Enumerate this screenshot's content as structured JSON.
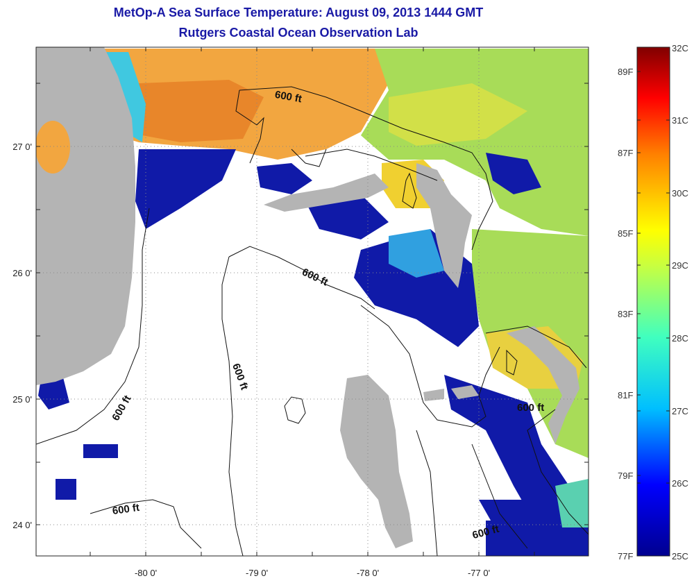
{
  "title_line1": "MetOp-A Sea Surface Temperature:  August 09, 2013 1444 GMT",
  "title_line2": "Rutgers Coastal Ocean Observation Lab",
  "axes": {
    "lon_labels": [
      "-80 0'",
      "-79 0'",
      "-78 0'",
      "-77 0'"
    ],
    "lat_labels": [
      "27 0'",
      "26 0'",
      "25 0'",
      "24 0'"
    ]
  },
  "contour_label": "600 ft",
  "colorbar": {
    "celsius": [
      "32C",
      "31C",
      "30C",
      "29C",
      "28C",
      "27C",
      "26C",
      "25C"
    ],
    "fahrenheit": [
      "89F",
      "87F",
      "85F",
      "83F",
      "81F",
      "79F",
      "77F"
    ],
    "colors": [
      "#00008f",
      "#0000ff",
      "#00bfff",
      "#40ffbf",
      "#ffff00",
      "#ff8000",
      "#ff0000",
      "#800000"
    ]
  },
  "colors": {
    "land": "#b4b4b4",
    "title": "#1a1aa6",
    "no_data": "#ffffff"
  }
}
